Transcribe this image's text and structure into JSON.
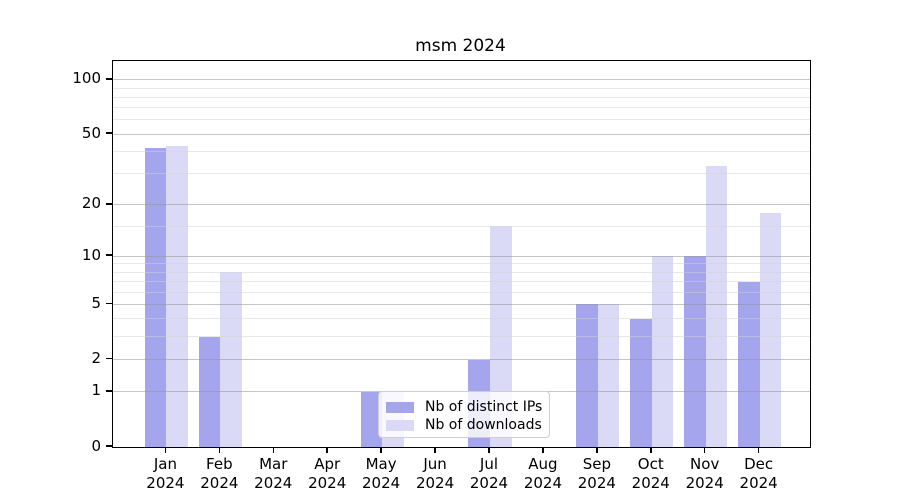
{
  "title": "msm 2024",
  "legend": {
    "items": [
      {
        "label": "Nb of distinct IPs",
        "color": "#a5a5ee"
      },
      {
        "label": "Nb of downloads",
        "color": "#dadaf7"
      }
    ]
  },
  "y_axis": {
    "tick_labels": [
      "0",
      "1",
      "2",
      "5",
      "10",
      "20",
      "50",
      "100"
    ]
  },
  "x_axis": {
    "year_label": "2024",
    "months": [
      "Jan",
      "Feb",
      "Mar",
      "Apr",
      "May",
      "Jun",
      "Jul",
      "Aug",
      "Sep",
      "Oct",
      "Nov",
      "Dec"
    ]
  },
  "chart_data": {
    "type": "bar",
    "title": "msm 2024",
    "categories": [
      "Jan 2024",
      "Feb 2024",
      "Mar 2024",
      "Apr 2024",
      "May 2024",
      "Jun 2024",
      "Jul 2024",
      "Aug 2024",
      "Sep 2024",
      "Oct 2024",
      "Nov 2024",
      "Dec 2024"
    ],
    "series": [
      {
        "name": "Nb of distinct IPs",
        "color": "#a5a5ee",
        "values": [
          42,
          3,
          0,
          0,
          1,
          0,
          2,
          0,
          5,
          4,
          10,
          7
        ]
      },
      {
        "name": "Nb of downloads",
        "color": "#dadaf7",
        "values": [
          43,
          8,
          0,
          0,
          1,
          0,
          15,
          0,
          5,
          10,
          33,
          18
        ]
      }
    ],
    "xlabel": "",
    "ylabel": "",
    "yscale": "log1p",
    "yticks": [
      0,
      1,
      2,
      5,
      10,
      20,
      50,
      100
    ],
    "minor_yticks": [
      3,
      4,
      6,
      7,
      8,
      9,
      15,
      30,
      40,
      60,
      70,
      80,
      90
    ],
    "ylim": [
      0,
      127
    ],
    "grid": true,
    "legend_position": "lower center"
  }
}
